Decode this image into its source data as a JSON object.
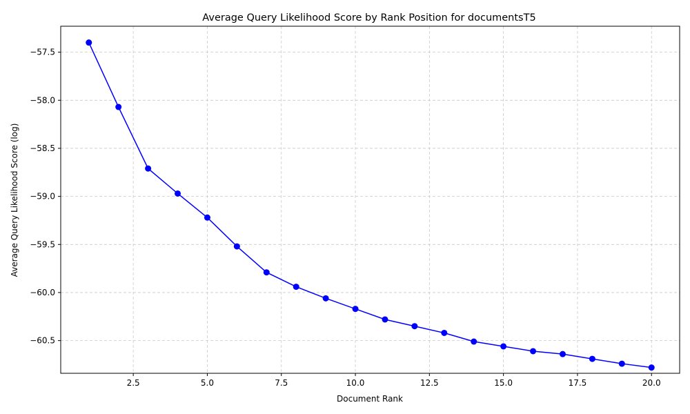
{
  "chart_data": {
    "type": "line",
    "title": "Average Query Likelihood Score by Rank Position for documentsT5",
    "xlabel": "Document Rank",
    "ylabel": "Average Query Likelihood Score (log)",
    "xlim": [
      0.05,
      20.95
    ],
    "ylim": [
      -60.84,
      -57.23
    ],
    "xticks": [
      2.5,
      5.0,
      7.5,
      10.0,
      12.5,
      15.0,
      17.5,
      20.0
    ],
    "xtick_labels": [
      "2.5",
      "5.0",
      "7.5",
      "10.0",
      "12.5",
      "15.0",
      "17.5",
      "20.0"
    ],
    "yticks": [
      -57.5,
      -58.0,
      -58.5,
      -59.0,
      -59.5,
      -60.0,
      -60.5
    ],
    "ytick_labels": [
      "−57.5",
      "−58.0",
      "−58.5",
      "−59.0",
      "−59.5",
      "−60.0",
      "−60.5"
    ],
    "grid": true,
    "line_color": "#0000ff",
    "grid_color": "#c8c8c8",
    "series": [
      {
        "x": [
          1,
          2,
          3,
          4,
          5,
          6,
          7,
          8,
          9,
          10,
          11,
          12,
          13,
          14,
          15,
          16,
          17,
          18,
          19,
          20
        ],
        "values": [
          -57.4,
          -58.07,
          -58.71,
          -58.97,
          -59.22,
          -59.52,
          -59.79,
          -59.94,
          -60.06,
          -60.17,
          -60.28,
          -60.35,
          -60.42,
          -60.51,
          -60.56,
          -60.61,
          -60.64,
          -60.69,
          -60.74,
          -60.78
        ]
      }
    ]
  }
}
